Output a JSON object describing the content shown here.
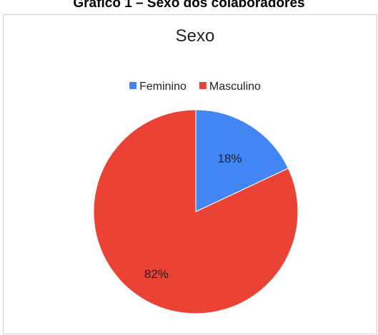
{
  "figure_caption": "Gráfico 1 – Sexo dos colaboradores",
  "chart_data": {
    "type": "pie",
    "title": "Sexo",
    "legend_position": "top",
    "categories": [
      "Feminino",
      "Masculino"
    ],
    "values": [
      18,
      82
    ],
    "data_labels": [
      "18%",
      "82%"
    ],
    "colors": [
      "#4285f4",
      "#ea4335"
    ]
  }
}
